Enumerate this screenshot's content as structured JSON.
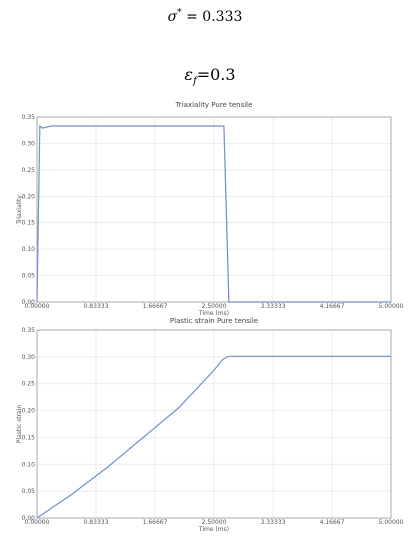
{
  "equations": [
    {
      "symbol": "σ",
      "sup": "*",
      "rhs": " = 0.333"
    },
    {
      "symbol": "ε",
      "sub": "f",
      "rhs": "=0.3"
    }
  ],
  "chart_data": [
    {
      "type": "line",
      "title": "Triaxiality Pure tensile",
      "xlabel": "Time (ms)",
      "ylabel": "Triaxiality",
      "color": "#6f8fcf",
      "grid": true,
      "xlim": [
        0,
        5
      ],
      "ylim": [
        0,
        0.35
      ],
      "xticks": [
        {
          "value": 0,
          "label": "0.00000"
        },
        0.83333,
        1.66667,
        {
          "value": 2.5,
          "label": "2.50000"
        },
        3.33333,
        4.16667,
        {
          "value": 5,
          "label": "5.00000"
        }
      ],
      "yticks": [
        {
          "value": 0,
          "label": "0.00"
        },
        0.05,
        {
          "value": 0.1,
          "label": "0.10"
        },
        0.15,
        {
          "value": 0.2,
          "label": "0.20"
        },
        0.25,
        {
          "value": 0.3,
          "label": "0.30"
        },
        0.35
      ],
      "x": [
        0,
        0.04,
        0.08,
        0.2,
        2.64,
        2.71,
        5
      ],
      "values": [
        0,
        0.333,
        0.329,
        0.333,
        0.333,
        0,
        0
      ]
    },
    {
      "type": "line",
      "title": "Plastic strain Pure tensile",
      "xlabel": "Time (ms)",
      "ylabel": "Plastic strain",
      "color": "#6f8fcf",
      "grid": true,
      "xlim": [
        0,
        5
      ],
      "ylim": [
        0,
        0.35
      ],
      "xticks": [
        {
          "value": 0,
          "label": "0.00000"
        },
        0.83333,
        1.66667,
        {
          "value": 2.5,
          "label": "2.50000"
        },
        3.33333,
        4.16667,
        {
          "value": 5,
          "label": "5.00000"
        }
      ],
      "yticks": [
        {
          "value": 0,
          "label": "0.00"
        },
        0.05,
        {
          "value": 0.1,
          "label": "0.10"
        },
        0.15,
        {
          "value": 0.2,
          "label": "0.20"
        },
        0.25,
        {
          "value": 0.3,
          "label": "0.30"
        },
        0.35
      ],
      "x": [
        0,
        0.5,
        1,
        1.5,
        2,
        2.5,
        2.62,
        2.7,
        5
      ],
      "values": [
        0,
        0.045,
        0.095,
        0.15,
        0.205,
        0.275,
        0.295,
        0.301,
        0.301
      ]
    }
  ]
}
